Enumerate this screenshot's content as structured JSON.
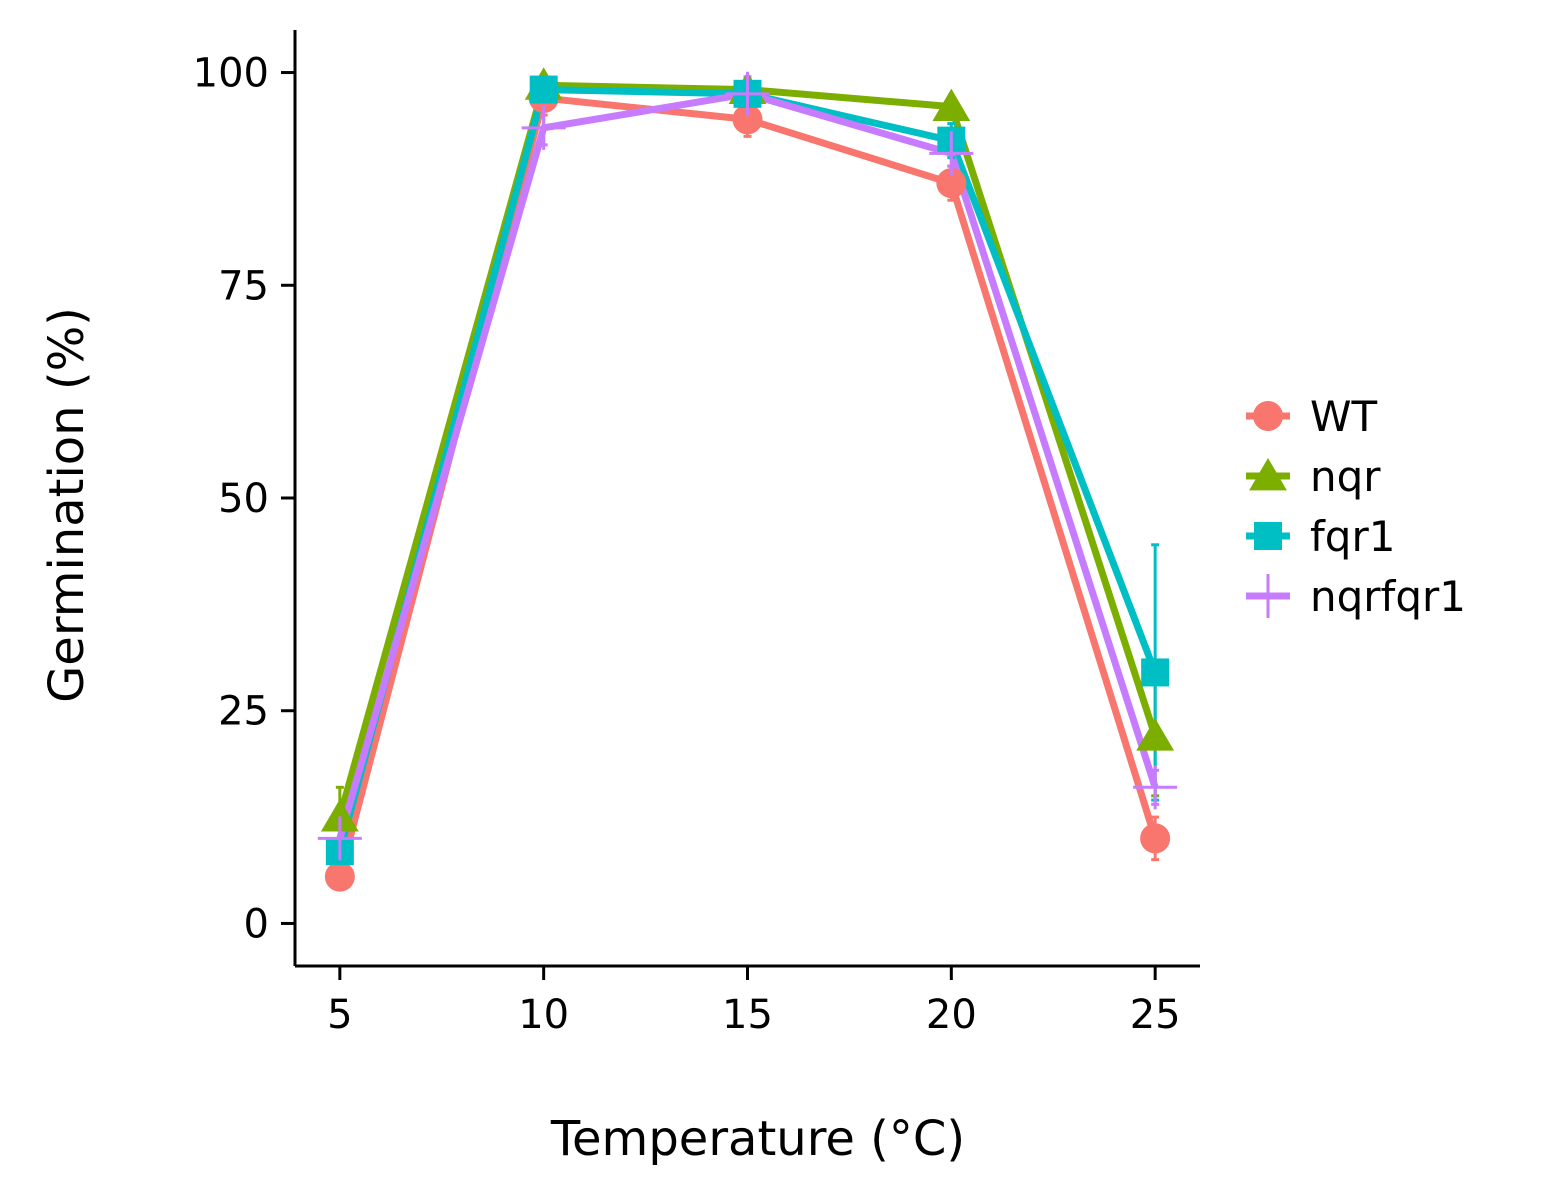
{
  "chart_data": {
    "type": "line",
    "title": "",
    "xlabel": "Temperature (°C)",
    "ylabel": "Germination (%)",
    "x": [
      5,
      10,
      15,
      20,
      25
    ],
    "xticks": [
      "5",
      "10",
      "15",
      "20",
      "25"
    ],
    "yticks": [
      "0",
      "25",
      "50",
      "75",
      "100"
    ],
    "xlim": [
      3.9,
      26.1
    ],
    "ylim": [
      -5,
      105
    ],
    "grid": false,
    "legend": "right",
    "series": [
      {
        "name": "WT",
        "marker": "circle",
        "color": "#F8766D",
        "values": [
          5.5,
          97,
          94.5,
          87,
          10
        ],
        "error": [
          1.5,
          2,
          2,
          2,
          2.5
        ]
      },
      {
        "name": "nqr",
        "marker": "triangle",
        "color": "#7CAE00",
        "values": [
          12.5,
          98.5,
          98,
          96,
          22
        ],
        "error": [
          3.5,
          1,
          1,
          1,
          7
        ]
      },
      {
        "name": "fqr1",
        "marker": "square",
        "color": "#00BFC4",
        "values": [
          8.5,
          98,
          97.5,
          92,
          29.5
        ],
        "error": [
          3,
          1,
          1,
          2,
          15
        ]
      },
      {
        "name": "nqrfqr1",
        "marker": "cross",
        "color": "#C77CFF",
        "values": [
          10,
          93.5,
          97.5,
          90.5,
          16
        ],
        "error": [
          2,
          2,
          2,
          1.5,
          2
        ]
      }
    ]
  }
}
